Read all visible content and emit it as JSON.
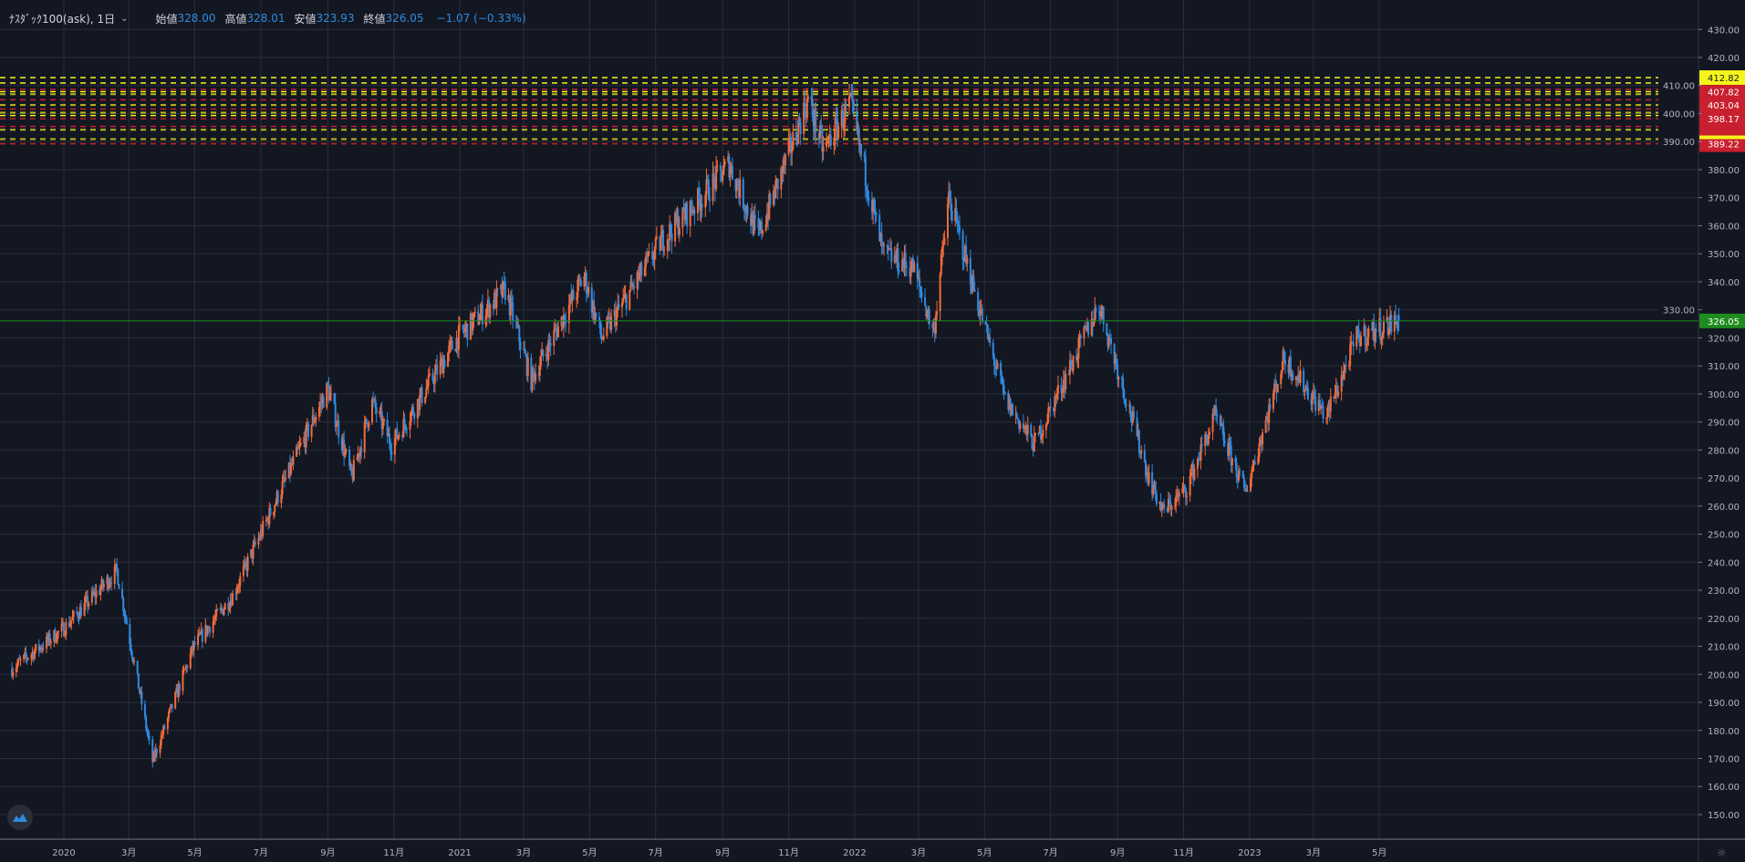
{
  "legend": {
    "symbol": "ﾅｽﾀﾞｯｸ100(ask), 1日",
    "open_label": "始値",
    "open": "328.00",
    "high_label": "高値",
    "high": "328.01",
    "low_label": "安値",
    "low": "323.93",
    "close_label": "終値",
    "close": "326.05",
    "change": "−1.07 (−0.33%)"
  },
  "colors": {
    "background": "#131722",
    "grid": "#2a2e39",
    "up": "#f26b3a",
    "down": "#2f8be0",
    "last_price": "#1e8c1e",
    "level_yellow": "#f5f51a",
    "level_red": "#c8202e",
    "level_olive": "#b8b81a"
  },
  "chart_data": {
    "type": "candlestick",
    "title": "",
    "ylim": [
      145,
      435
    ],
    "y_ticks": [
      "430.00",
      "420.00",
      "410.00",
      "400.00",
      "390.00",
      "380.00",
      "370.00",
      "360.00",
      "350.00",
      "340.00",
      "330.00",
      "320.00",
      "310.00",
      "300.00",
      "290.00",
      "280.00",
      "270.00",
      "260.00",
      "250.00",
      "240.00",
      "230.00",
      "220.00",
      "210.00",
      "200.00",
      "190.00",
      "180.00",
      "170.00",
      "160.00",
      "150.00"
    ],
    "x_ticks": [
      {
        "date": "2020-01-01",
        "label": "2020"
      },
      {
        "date": "2020-03-01",
        "label": "3月"
      },
      {
        "date": "2020-05-01",
        "label": "5月"
      },
      {
        "date": "2020-07-01",
        "label": "7月"
      },
      {
        "date": "2020-09-01",
        "label": "9月"
      },
      {
        "date": "2020-11-01",
        "label": "11月"
      },
      {
        "date": "2021-01-01",
        "label": "2021"
      },
      {
        "date": "2021-03-01",
        "label": "3月"
      },
      {
        "date": "2021-05-01",
        "label": "5月"
      },
      {
        "date": "2021-07-01",
        "label": "7月"
      },
      {
        "date": "2021-09-01",
        "label": "9月"
      },
      {
        "date": "2021-11-01",
        "label": "11月"
      },
      {
        "date": "2022-01-01",
        "label": "2022"
      },
      {
        "date": "2022-03-01",
        "label": "3月"
      },
      {
        "date": "2022-05-01",
        "label": "5月"
      },
      {
        "date": "2022-07-01",
        "label": "7月"
      },
      {
        "date": "2022-09-01",
        "label": "9月"
      },
      {
        "date": "2022-11-01",
        "label": "11月"
      },
      {
        "date": "2023-01-01",
        "label": "2023"
      },
      {
        "date": "2023-03-01",
        "label": "3月"
      },
      {
        "date": "2023-05-01",
        "label": "5月"
      }
    ],
    "approx_close_path": [
      [
        "2019-11-14",
        202
      ],
      [
        "2019-12-31",
        216
      ],
      [
        "2020-02-19",
        237
      ],
      [
        "2020-03-23",
        169
      ],
      [
        "2020-04-30",
        210
      ],
      [
        "2020-06-05",
        228
      ],
      [
        "2020-07-15",
        262
      ],
      [
        "2020-09-01",
        302
      ],
      [
        "2020-09-23",
        270
      ],
      [
        "2020-10-12",
        297
      ],
      [
        "2020-10-30",
        282
      ],
      [
        "2020-12-30",
        320
      ],
      [
        "2021-02-12",
        337
      ],
      [
        "2021-03-08",
        305
      ],
      [
        "2021-04-26",
        342
      ],
      [
        "2021-05-12",
        320
      ],
      [
        "2021-07-07",
        355
      ],
      [
        "2021-08-10",
        369
      ],
      [
        "2021-09-07",
        382
      ],
      [
        "2021-10-04",
        356
      ],
      [
        "2021-11-19",
        405
      ],
      [
        "2021-12-03",
        387
      ],
      [
        "2021-12-28",
        403
      ],
      [
        "2022-01-27",
        350
      ],
      [
        "2022-02-24",
        345
      ],
      [
        "2022-03-15",
        322
      ],
      [
        "2022-03-29",
        370
      ],
      [
        "2022-04-18",
        342
      ],
      [
        "2022-05-20",
        298
      ],
      [
        "2022-06-16",
        282
      ],
      [
        "2022-08-15",
        332
      ],
      [
        "2022-09-30",
        270
      ],
      [
        "2022-10-13",
        258
      ],
      [
        "2022-11-03",
        266
      ],
      [
        "2022-11-30",
        292
      ],
      [
        "2022-12-28",
        265
      ],
      [
        "2023-02-02",
        313
      ],
      [
        "2023-03-13",
        292
      ],
      [
        "2023-04-10",
        320
      ],
      [
        "2023-05-19",
        326.05
      ]
    ],
    "last_ohlc": {
      "open": 328.0,
      "high": 328.01,
      "low": 323.93,
      "close": 326.05
    },
    "last_price_line": {
      "value": 326.05,
      "label": "326.05"
    },
    "levels": [
      {
        "value": 412.82,
        "color": "yellow",
        "label": "412.82"
      },
      {
        "value": 410.9,
        "color": "yellow"
      },
      {
        "value": 408.6,
        "color": "red"
      },
      {
        "value": 407.82,
        "color": "yellow",
        "label": "407.82"
      },
      {
        "value": 406.9,
        "color": "olive"
      },
      {
        "value": 404.9,
        "color": "red"
      },
      {
        "value": 403.04,
        "color": "olive",
        "label": "403.04"
      },
      {
        "value": 401.6,
        "color": "red"
      },
      {
        "value": 400.3,
        "color": "olive"
      },
      {
        "value": 399.3,
        "color": "yellow"
      },
      {
        "value": 398.17,
        "color": "red",
        "label": "398.17"
      },
      {
        "value": 395.4,
        "color": "red"
      },
      {
        "value": 394.2,
        "color": "olive"
      },
      {
        "value": 390.9,
        "color": "olive"
      },
      {
        "value": 389.22,
        "color": "red",
        "label": "389.22"
      }
    ],
    "grid": true
  }
}
